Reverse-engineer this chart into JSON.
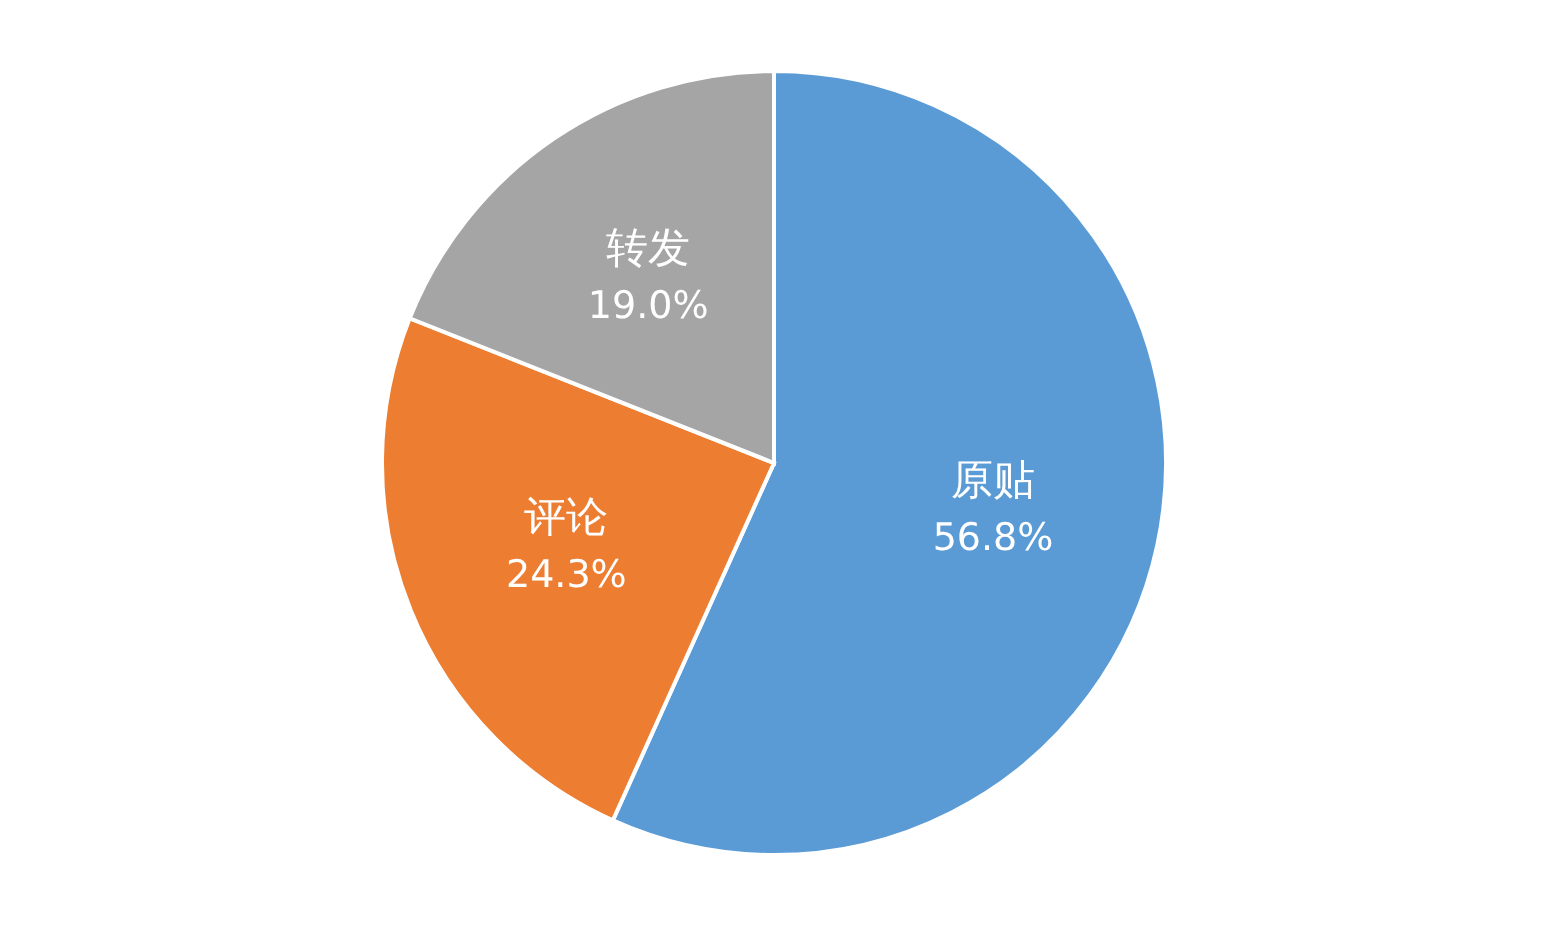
{
  "chart_data": {
    "type": "pie",
    "categories": [
      "原贴",
      "评论",
      "转发"
    ],
    "values": [
      56.8,
      24.3,
      19.0
    ],
    "colors": [
      "#5b9bd5",
      "#ed7d31",
      "#a5a5a5"
    ],
    "value_labels": [
      "56.8%",
      "24.3%",
      "19.0%"
    ]
  }
}
